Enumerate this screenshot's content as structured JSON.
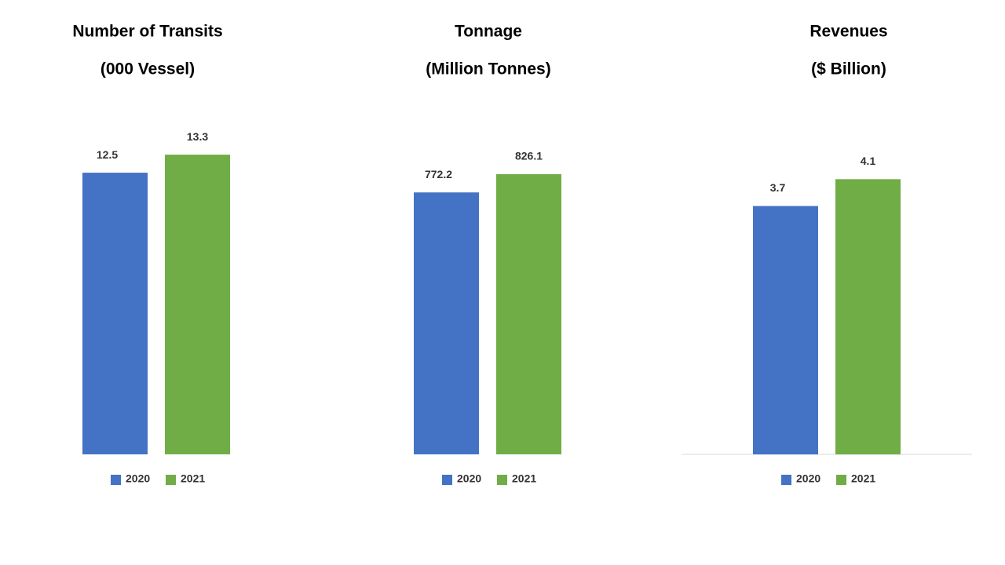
{
  "chart_data": [
    {
      "type": "bar",
      "title": "Number of Transits",
      "subtitle": "(000 Vessel)",
      "categories": [
        null
      ],
      "series": [
        {
          "name": "2020",
          "color": "#4472c4",
          "values": [
            12.5
          ]
        },
        {
          "name": "2021",
          "color": "#70ad47",
          "values": [
            13.3
          ]
        }
      ],
      "ylim": [
        0,
        14
      ],
      "axis_line": false,
      "legend": "bottom"
    },
    {
      "type": "bar",
      "title": "Tonnage",
      "subtitle": "(Million Tonnes)",
      "categories": [
        null
      ],
      "series": [
        {
          "name": "2020",
          "color": "#4472c4",
          "values": [
            772.2
          ]
        },
        {
          "name": "2021",
          "color": "#70ad47",
          "values": [
            826.1
          ]
        }
      ],
      "ylim": [
        0,
        930
      ],
      "axis_line": false,
      "legend": "bottom"
    },
    {
      "type": "bar",
      "title": "Revenues",
      "subtitle": "($ Billion)",
      "categories": [
        null
      ],
      "series": [
        {
          "name": "2020",
          "color": "#4472c4",
          "values": [
            3.7
          ]
        },
        {
          "name": "2021",
          "color": "#70ad47",
          "values": [
            4.1
          ]
        }
      ],
      "ylim": [
        0,
        4.7
      ],
      "axis_line": true,
      "legend": "bottom"
    }
  ]
}
